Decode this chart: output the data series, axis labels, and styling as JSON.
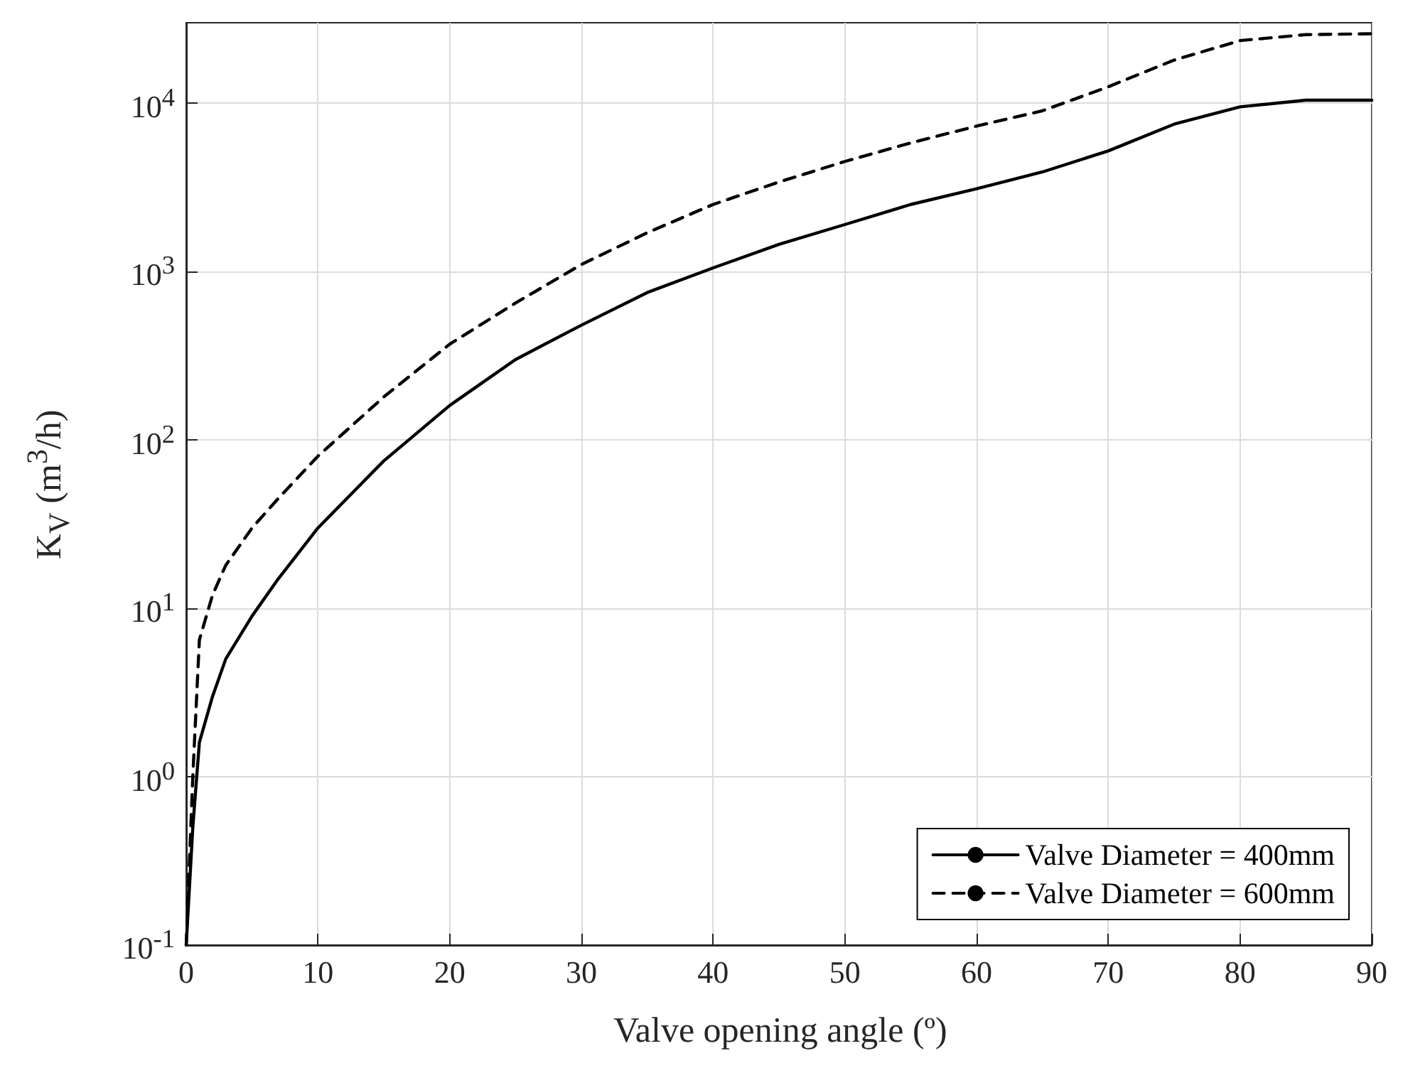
{
  "chart_data": {
    "type": "line",
    "xlabel": "Valve opening angle (º)",
    "ylabel": "K$_{V}$ (m$^{3}$/h)",
    "xlim": [
      0,
      90
    ],
    "xticks": [
      0,
      10,
      20,
      30,
      40,
      50,
      60,
      70,
      80,
      90
    ],
    "ylim": [
      0.1,
      30000
    ],
    "log": "y",
    "yticks": [
      {
        "value": 0.1,
        "label": "10$^{-1}$"
      },
      {
        "value": 1,
        "label": "10$^{0}$"
      },
      {
        "value": 10,
        "label": "10$^{1}$"
      },
      {
        "value": 100,
        "label": "10$^{2}$"
      },
      {
        "value": 1000,
        "label": "10$^{3}$"
      },
      {
        "value": 10000,
        "label": "10$^{4}$"
      }
    ],
    "grid": true,
    "legend": "bottom right",
    "marker": "none",
    "series": [
      {
        "name": "Valve Diameter = 400mm",
        "color": "#000000",
        "line_style": "solid",
        "x": [
          0,
          0.5,
          1,
          2,
          3,
          5,
          7,
          10,
          15,
          20,
          25,
          30,
          35,
          40,
          45,
          50,
          55,
          60,
          65,
          70,
          75,
          80,
          85,
          90
        ],
        "values": [
          0.1,
          0.5,
          1.6,
          3,
          5,
          9,
          15,
          30,
          75,
          160,
          300,
          480,
          750,
          1050,
          1450,
          1900,
          2500,
          3100,
          3900,
          5200,
          7500,
          9500,
          10400,
          10400
        ]
      },
      {
        "name": "Valve Diameter = 600mm",
        "color": "#000000",
        "line_style": "dashed",
        "x": [
          0,
          0.5,
          1,
          2,
          3,
          5,
          7,
          10,
          15,
          20,
          25,
          30,
          35,
          40,
          45,
          50,
          55,
          60,
          65,
          70,
          75,
          80,
          85,
          90
        ],
        "values": [
          0.1,
          1,
          6.5,
          12,
          18,
          30,
          45,
          80,
          180,
          370,
          650,
          1100,
          1700,
          2500,
          3400,
          4500,
          5800,
          7300,
          9000,
          12500,
          18000,
          23500,
          25500,
          25800
        ]
      }
    ]
  }
}
